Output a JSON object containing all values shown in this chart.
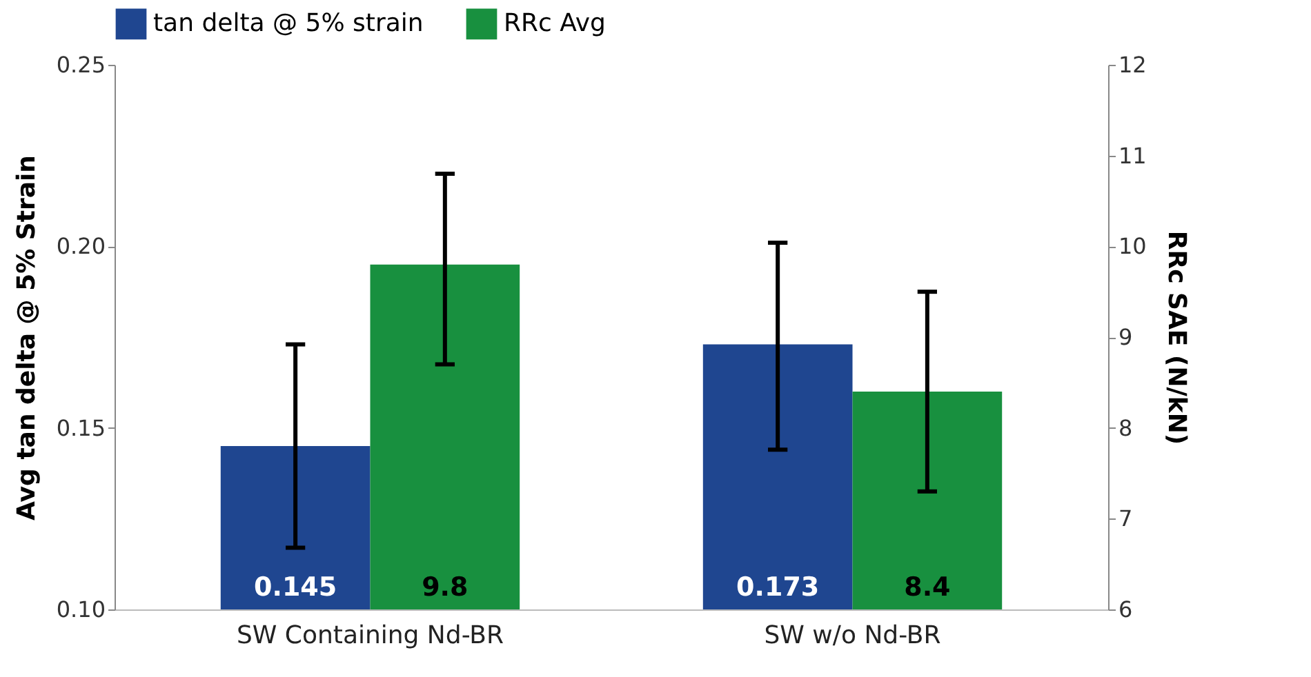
{
  "chart_data": {
    "type": "bar",
    "ylabel": "Avg tan delta @ 5% Strain",
    "y2label": "RRc SAE (N/kN)",
    "categories": [
      "SW Containing Nd-BR",
      "SW w/o Nd-BR"
    ],
    "series": [
      {
        "name": "tan delta @ 5% strain",
        "color": "#1f4690",
        "values": [
          0.145,
          0.173
        ],
        "errors": [
          [
            0.117,
            0.173
          ],
          [
            0.144,
            0.201
          ]
        ]
      },
      {
        "name": "RRc Avg",
        "color": "#18903f",
        "axis": "y2",
        "values": [
          9.8,
          8.4
        ],
        "errors": [
          [
            8.7,
            10.8
          ],
          [
            7.3,
            9.5
          ]
        ]
      }
    ],
    "ylim": [
      0.1,
      0.25
    ],
    "yticks": [
      {
        "value": 0.1,
        "label": "0.10"
      },
      0.15,
      {
        "value": 0.2,
        "label": "0.20"
      },
      0.25
    ],
    "y2lim": [
      6,
      12
    ],
    "y2ticks": [
      6,
      7,
      8,
      9,
      10,
      11,
      12
    ],
    "data_labels": true,
    "grid": false,
    "legend": "top"
  }
}
